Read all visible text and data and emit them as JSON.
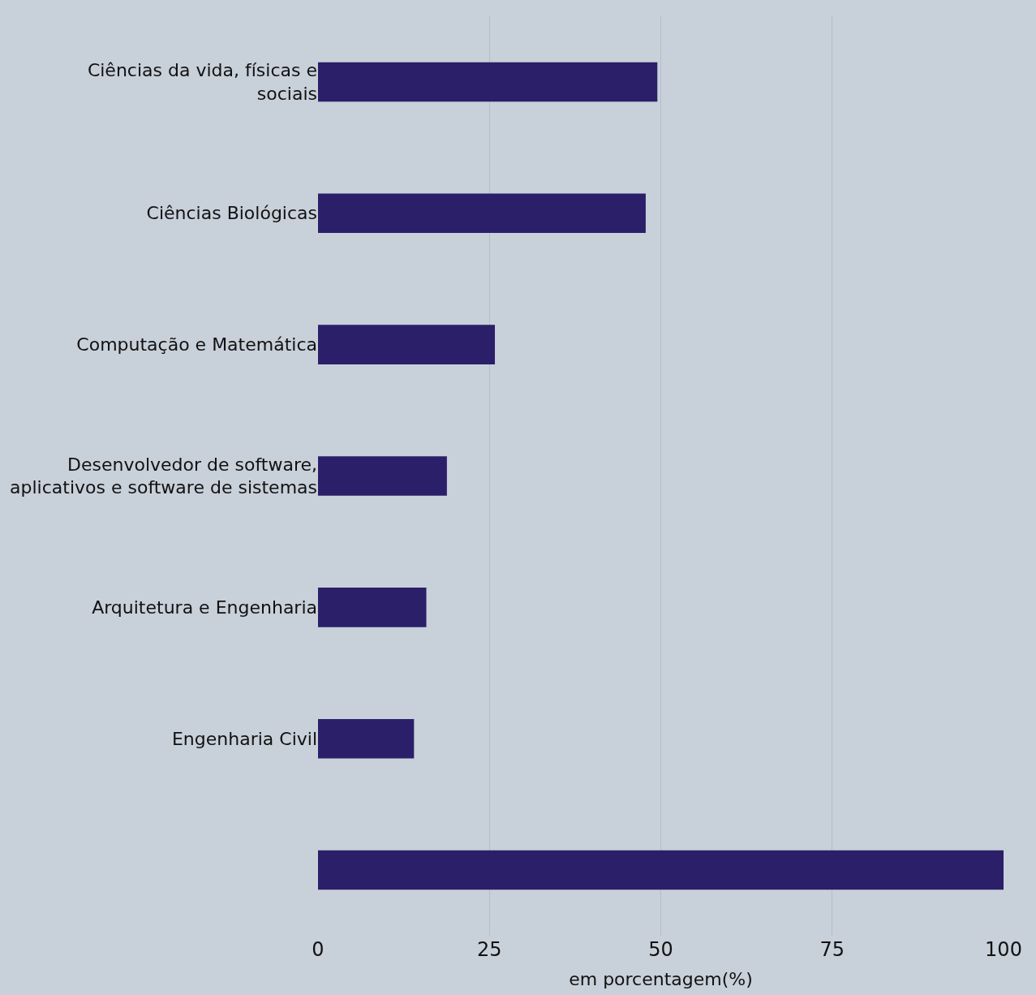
{
  "chart_data": {
    "type": "bar",
    "orientation": "horizontal",
    "categories": [
      "Ciências da vida, físicas e sociais",
      "Ciências Biológicas",
      "Computação e Matemática",
      "Desenvolvedor de software, aplicativos e software de sistemas",
      "Arquitetura e Engenharia",
      "Engenharia Civil",
      null
    ],
    "values": [
      49.5,
      47.8,
      25.8,
      18.8,
      15.8,
      14.0,
      100
    ],
    "color": "#2a1f68",
    "xlim": [
      0,
      100
    ],
    "xticks": [
      0,
      25,
      50,
      75,
      100
    ],
    "xlabel": "em porcentagem(%)",
    "grid": "x"
  }
}
